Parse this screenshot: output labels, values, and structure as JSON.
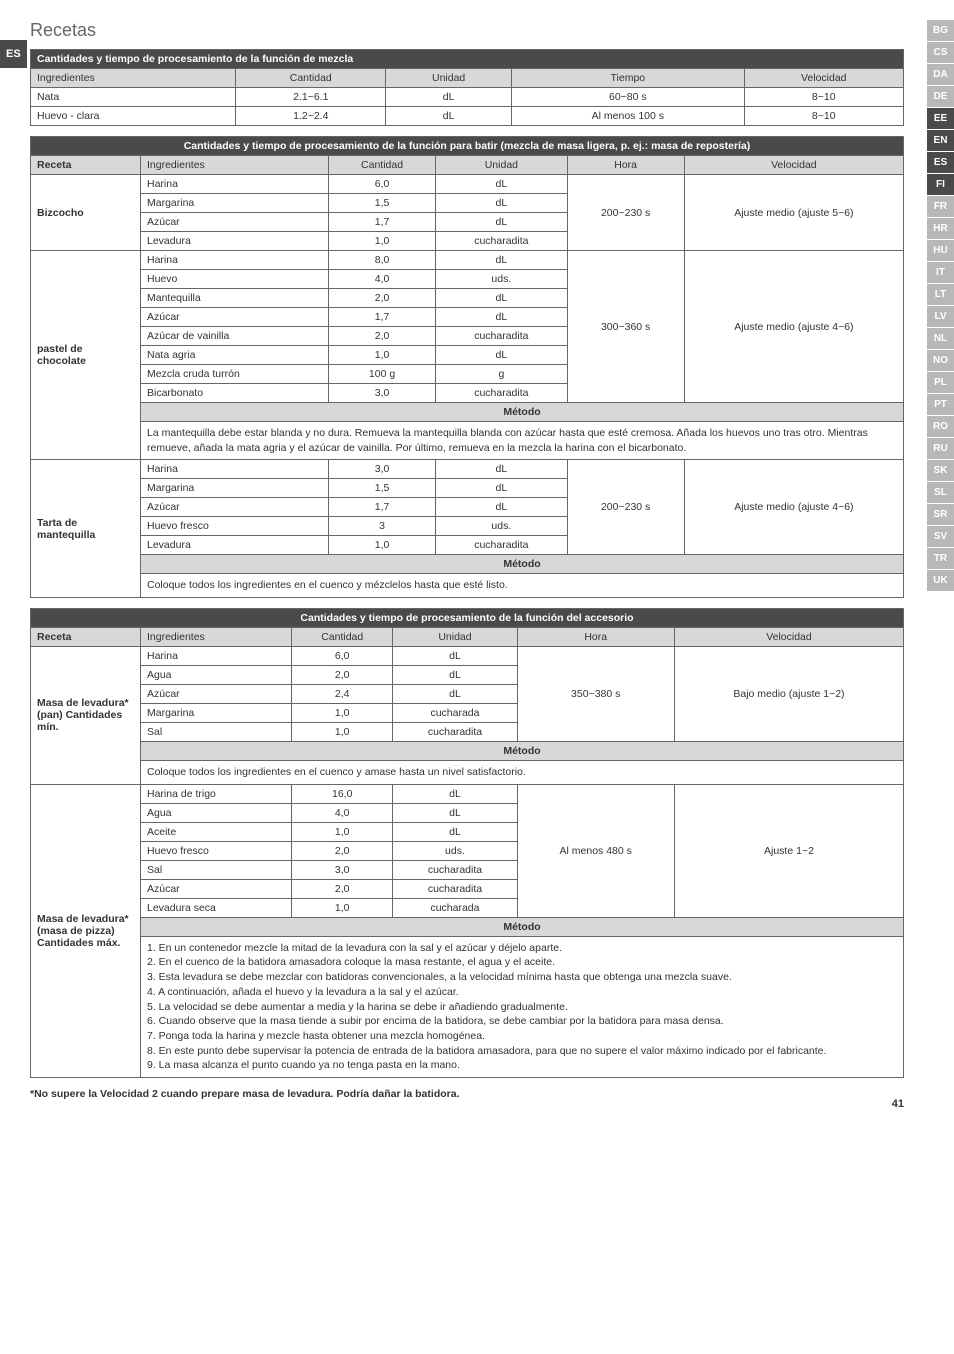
{
  "page": {
    "title": "Recetas",
    "footnote": "*No supere la Velocidad 2 cuando prepare masa de levadura. Podría dañar la batidora.",
    "page_num": "41"
  },
  "langs": {
    "left": "ES",
    "right": [
      "BG",
      "CS",
      "DA",
      "DE",
      "EE",
      "EN",
      "ES",
      "FI",
      "FR",
      "HR",
      "HU",
      "IT",
      "LT",
      "LV",
      "NL",
      "NO",
      "PL",
      "PT",
      "RO",
      "RU",
      "SK",
      "SL",
      "SR",
      "SV",
      "TR",
      "UK"
    ],
    "dark": [
      "EE",
      "EN",
      "ES",
      "FI"
    ]
  },
  "t1": {
    "title": "Cantidades y tiempo de procesamiento de la función de mezcla",
    "headers": [
      "Ingredientes",
      "Cantidad",
      "Unidad",
      "Tiempo",
      "Velocidad"
    ],
    "rows": [
      [
        "Nata",
        "2.1~6.1",
        "dL",
        "60~80 s",
        "8~10"
      ],
      [
        "Huevo - clara",
        "1.2~2.4",
        "dL",
        "Al menos 100 s",
        "8~10"
      ]
    ]
  },
  "t2": {
    "title": "Cantidades y tiempo de procesamiento de la función para batir (mezcla de masa ligera, p. ej.: masa de repostería)",
    "headers": [
      "Receta",
      "Ingredientes",
      "Cantidad",
      "Unidad",
      "Hora",
      "Velocidad"
    ],
    "g1": {
      "name": "Bizcocho",
      "time": "200~230 s",
      "speed": "Ajuste medio (ajuste 5~6)",
      "rows": [
        [
          "Harina",
          "6,0",
          "dL"
        ],
        [
          "Margarina",
          "1,5",
          "dL"
        ],
        [
          "Azúcar",
          "1,7",
          "dL"
        ],
        [
          "Levadura",
          "1,0",
          "cucharadita"
        ]
      ]
    },
    "g2": {
      "name": "pastel de chocolate",
      "time": "300~360 s",
      "speed": "Ajuste medio (ajuste 4~6)",
      "rows": [
        [
          "Harina",
          "8,0",
          "dL"
        ],
        [
          "Huevo",
          "4,0",
          "uds."
        ],
        [
          "Mantequilla",
          "2,0",
          "dL"
        ],
        [
          "Azúcar",
          "1,7",
          "dL"
        ],
        [
          "Azúcar de vainilla",
          "2,0",
          "cucharadita"
        ],
        [
          "Nata agria",
          "1,0",
          "dL"
        ],
        [
          "Mezcla cruda turrón",
          "100 g",
          "g"
        ],
        [
          "Bicarbonato",
          "3,0",
          "cucharadita"
        ]
      ],
      "metodo": "Método",
      "note": "La mantequilla debe estar blanda y no dura. Remueva la mantequilla blanda con azúcar hasta que esté cremosa. Añada los huevos uno tras otro. Mientras remueve, añada la mata agria y el azúcar de vainilla. Por último, remueva en la mezcla la harina con el bicarbonato."
    },
    "g3": {
      "name": "Tarta de mantequilla",
      "time": "200~230 s",
      "speed": "Ajuste medio (ajuste 4~6)",
      "rows": [
        [
          "Harina",
          "3,0",
          "dL"
        ],
        [
          "Margarina",
          "1,5",
          "dL"
        ],
        [
          "Azúcar",
          "1,7",
          "dL"
        ],
        [
          "Huevo fresco",
          "3",
          "uds."
        ],
        [
          "Levadura",
          "1,0",
          "cucharadita"
        ]
      ],
      "metodo": "Método",
      "note": "Coloque todos los ingredientes en el cuenco y mézclelos hasta que esté listo."
    }
  },
  "t3": {
    "title": "Cantidades y tiempo de procesamiento de la función del accesorio",
    "headers": [
      "Receta",
      "Ingredientes",
      "Cantidad",
      "Unidad",
      "Hora",
      "Velocidad"
    ],
    "g1": {
      "name": "Masa de levadura* (pan) Cantidades mín.",
      "time": "350~380 s",
      "speed": "Bajo medio (ajuste 1~2)",
      "rows": [
        [
          "Harina",
          "6,0",
          "dL"
        ],
        [
          "Agua",
          "2,0",
          "dL"
        ],
        [
          "Azúcar",
          "2,4",
          "dL"
        ],
        [
          "Margarina",
          "1,0",
          "cucharada"
        ],
        [
          "Sal",
          "1,0",
          "cucharadita"
        ]
      ],
      "metodo": "Método",
      "note": "Coloque todos los ingredientes en el cuenco y amase hasta un nivel satisfactorio."
    },
    "g2": {
      "name": "Masa de levadura* (masa de pizza) Cantidades máx.",
      "time": "Al menos 480 s",
      "speed": "Ajuste 1~2",
      "rows": [
        [
          "Harina de trigo",
          "16,0",
          "dL"
        ],
        [
          "Agua",
          "4,0",
          "dL"
        ],
        [
          "Aceite",
          "1,0",
          "dL"
        ],
        [
          "Huevo fresco",
          "2,0",
          "uds."
        ],
        [
          "Sal",
          "3,0",
          "cucharadita"
        ],
        [
          "Azúcar",
          "2,0",
          "cucharadita"
        ],
        [
          "Levadura seca",
          "1,0",
          "cucharada"
        ]
      ],
      "metodo": "Método",
      "steps": [
        "1. En un contenedor mezcle la mitad de la levadura con la sal y el azúcar y déjelo aparte.",
        "2. En el cuenco de la batidora amasadora coloque la masa restante, el agua y el aceite.",
        "3. Esta levadura se debe mezclar con batidoras convencionales, a la velocidad mínima hasta que obtenga una mezcla suave.",
        "4. A continuación, añada el huevo y la levadura a la sal y el azúcar.",
        "5. La velocidad se debe aumentar a media y la harina se debe ir añadiendo gradualmente.",
        "6. Cuando observe que la masa tiende a subir por encima de la batidora, se debe cambiar por la batidora para masa densa.",
        "7. Ponga toda la harina y mezcle hasta obtener una mezcla homogénea.",
        "8. En este punto debe supervisar la potencia de entrada de la batidora amasadora, para que no supere el valor máximo indicado por el fabricante.",
        "9. La masa alcanza el punto cuando ya no tenga pasta en la mano."
      ]
    }
  }
}
